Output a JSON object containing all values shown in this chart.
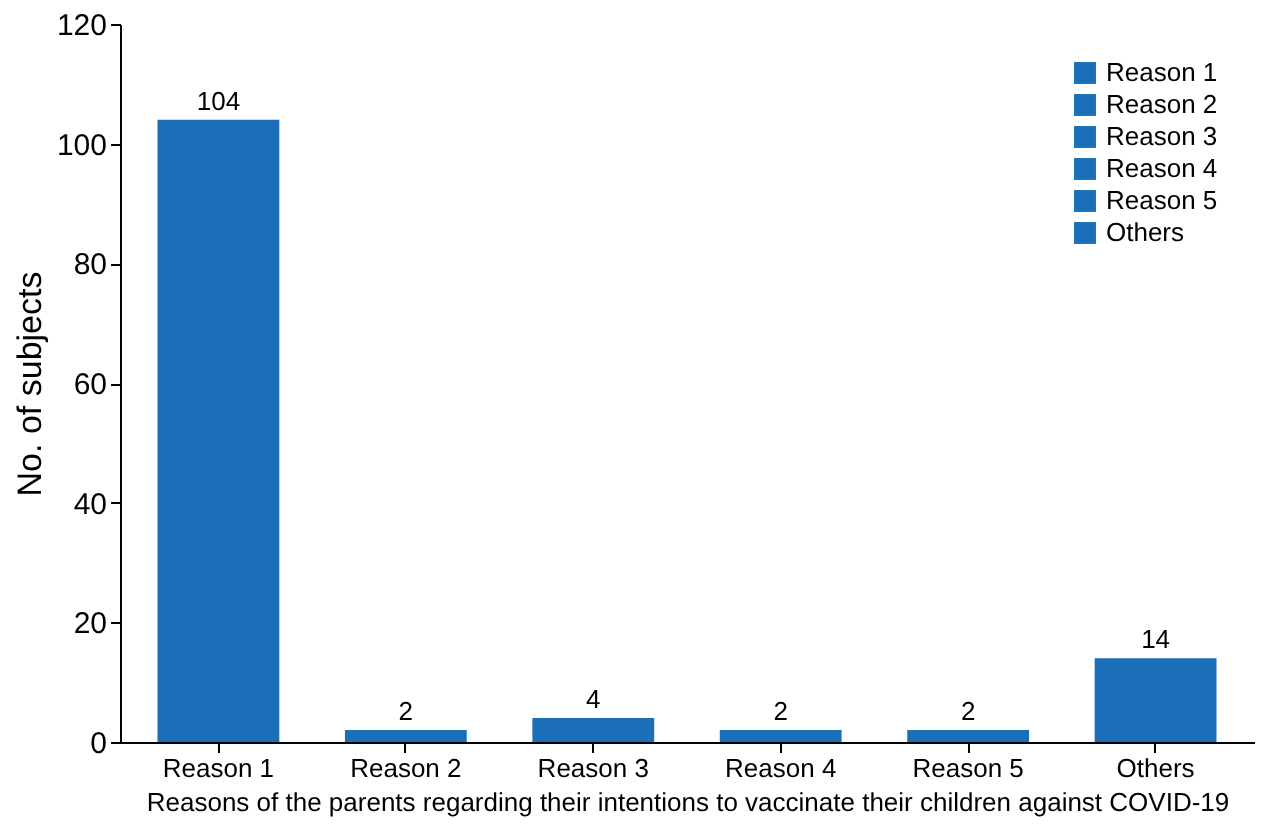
{
  "chart_data": {
    "type": "bar",
    "xlabel": "Reasons of the parents regarding their intentions to vaccinate their children against COVID-19",
    "ylabel": "No. of subjects",
    "categories": [
      "Reason 1",
      "Reason 2",
      "Reason 3",
      "Reason 4",
      "Reason 5",
      "Others"
    ],
    "series": [
      {
        "name": "Reason 1",
        "color": "#1a6fb8",
        "values": [
          104,
          null,
          null,
          null,
          null,
          null
        ]
      },
      {
        "name": "Reason 2",
        "color": "#1a6fb8",
        "values": [
          null,
          2,
          null,
          null,
          null,
          null
        ]
      },
      {
        "name": "Reason 3",
        "color": "#1a6fb8",
        "values": [
          null,
          null,
          4,
          null,
          null,
          null
        ]
      },
      {
        "name": "Reason 4",
        "color": "#1a6fb8",
        "values": [
          null,
          null,
          null,
          2,
          null,
          null
        ]
      },
      {
        "name": "Reason 5",
        "color": "#1a6fb8",
        "values": [
          null,
          null,
          null,
          null,
          2,
          null
        ]
      },
      {
        "name": "Others",
        "color": "#1a6fb8",
        "values": [
          null,
          null,
          null,
          null,
          null,
          14
        ]
      }
    ],
    "ylim": [
      0,
      120
    ],
    "yticks": [
      0,
      20,
      40,
      60,
      80,
      100,
      120
    ],
    "grid": false,
    "legend": "top right",
    "data_labels": true
  }
}
